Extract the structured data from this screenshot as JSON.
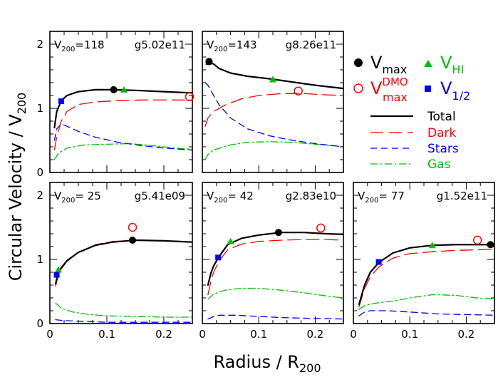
{
  "figure": {
    "ylabel": "Circular Velocity / V",
    "ylabel_sub": "200",
    "xlabel": "Radius / R",
    "xlabel_sub": "200"
  },
  "legend": {
    "vmax_label": "V",
    "vmax_sub": "max",
    "vmaxdmo_label": "V",
    "vmaxdmo_sup": "DMO",
    "vmaxdmo_sub": "max",
    "vhi_label": "V",
    "vhi_sub": "HI",
    "vhalf_label": "V",
    "vhalf_sub": "1/2",
    "lines": [
      {
        "label": "Total",
        "color": "#000000",
        "style": "solid"
      },
      {
        "label": "Dark",
        "color": "#ff0000",
        "style": "long-dash"
      },
      {
        "label": "Stars",
        "color": "#0000ff",
        "style": "dash"
      },
      {
        "label": "Gas",
        "color": "#00c000",
        "style": "dash-dot"
      }
    ],
    "colors": {
      "total": "#000000",
      "dark": "#ff0000",
      "stars": "#0000ff",
      "gas": "#00c000"
    }
  },
  "chart_data": [
    {
      "type": "line",
      "v200_label": "V",
      "v200_sub": "200",
      "v200_value": "=118",
      "galaxy": "g5.02e11",
      "xlim": [
        0,
        0.25
      ],
      "ylim": [
        0,
        2.2
      ],
      "xticks": [
        "0",
        "0.1",
        "0.2"
      ],
      "yticks": [
        "0",
        "1",
        "2"
      ],
      "series": [
        {
          "name": "Total",
          "x": [
            0.008,
            0.012,
            0.02,
            0.03,
            0.05,
            0.08,
            0.11,
            0.15,
            0.2,
            0.25
          ],
          "y": [
            0.7,
            0.95,
            1.12,
            1.2,
            1.26,
            1.29,
            1.29,
            1.28,
            1.26,
            1.24
          ]
        },
        {
          "name": "Dark",
          "x": [
            0.008,
            0.012,
            0.02,
            0.03,
            0.05,
            0.08,
            0.12,
            0.16,
            0.2,
            0.25
          ],
          "y": [
            0.35,
            0.55,
            0.8,
            0.95,
            1.06,
            1.1,
            1.12,
            1.13,
            1.13,
            1.13
          ]
        },
        {
          "name": "Stars",
          "x": [
            0.008,
            0.012,
            0.02,
            0.03,
            0.05,
            0.08,
            0.12,
            0.16,
            0.2,
            0.25
          ],
          "y": [
            0.5,
            0.68,
            0.76,
            0.72,
            0.64,
            0.55,
            0.47,
            0.42,
            0.38,
            0.35
          ]
        },
        {
          "name": "Gas",
          "x": [
            0.008,
            0.015,
            0.03,
            0.06,
            0.1,
            0.14,
            0.18,
            0.22,
            0.25
          ],
          "y": [
            0.2,
            0.3,
            0.38,
            0.43,
            0.44,
            0.45,
            0.42,
            0.38,
            0.36
          ]
        }
      ],
      "markers": {
        "vmax": [
          0.112,
          1.29
        ],
        "vmax_dmo": [
          0.245,
          1.18
        ],
        "vhi": [
          0.13,
          1.29
        ],
        "vhalf": [
          0.02,
          1.11
        ]
      }
    },
    {
      "type": "line",
      "v200_label": "V",
      "v200_sub": "200",
      "v200_value": "=143",
      "galaxy": "g8.26e11",
      "xlim": [
        0,
        0.25
      ],
      "ylim": [
        0,
        2.2
      ],
      "xticks": [
        "0",
        "0.1",
        "0.2"
      ],
      "yticks": [
        "0",
        "1",
        "2"
      ],
      "series": [
        {
          "name": "Total",
          "x": [
            0.008,
            0.012,
            0.02,
            0.03,
            0.05,
            0.08,
            0.12,
            0.16,
            0.2,
            0.25
          ],
          "y": [
            1.7,
            1.73,
            1.69,
            1.62,
            1.55,
            1.5,
            1.46,
            1.41,
            1.36,
            1.31
          ]
        },
        {
          "name": "Dark",
          "x": [
            0.005,
            0.01,
            0.02,
            0.04,
            0.07,
            0.1,
            0.14,
            0.18,
            0.22,
            0.25
          ],
          "y": [
            0.72,
            0.85,
            0.95,
            1.05,
            1.15,
            1.2,
            1.23,
            1.23,
            1.21,
            1.2
          ]
        },
        {
          "name": "Stars",
          "x": [
            0.005,
            0.01,
            0.02,
            0.03,
            0.05,
            0.08,
            0.12,
            0.16,
            0.2,
            0.25
          ],
          "y": [
            1.4,
            1.36,
            1.2,
            1.05,
            0.85,
            0.68,
            0.57,
            0.5,
            0.45,
            0.4
          ]
        },
        {
          "name": "Gas",
          "x": [
            0.005,
            0.01,
            0.02,
            0.05,
            0.08,
            0.12,
            0.16,
            0.2,
            0.25
          ],
          "y": [
            0.2,
            0.28,
            0.35,
            0.43,
            0.47,
            0.48,
            0.47,
            0.44,
            0.4
          ]
        }
      ],
      "markers": {
        "vmax": [
          0.012,
          1.73
        ],
        "vmax_dmo": [
          0.17,
          1.27
        ],
        "vhi": [
          0.125,
          1.45
        ],
        "vhalf": [
          0.011,
          1.72
        ]
      }
    },
    {
      "type": "line",
      "v200_label": "V",
      "v200_sub": "200",
      "v200_value": "=  25",
      "galaxy": "g5.41e09",
      "xlim": [
        0,
        0.25
      ],
      "ylim": [
        0,
        2.2
      ],
      "xticks": [
        "0",
        "0.1",
        "0.2"
      ],
      "yticks": [
        "0",
        "1",
        "2"
      ],
      "series": [
        {
          "name": "Total",
          "x": [
            0.01,
            0.015,
            0.02,
            0.03,
            0.05,
            0.08,
            0.11,
            0.15,
            0.2,
            0.25
          ],
          "y": [
            0.62,
            0.8,
            0.87,
            0.98,
            1.11,
            1.22,
            1.27,
            1.3,
            1.29,
            1.27
          ]
        },
        {
          "name": "Dark",
          "x": [
            0.01,
            0.015,
            0.02,
            0.03,
            0.05,
            0.08,
            0.11,
            0.15,
            0.2,
            0.25
          ],
          "y": [
            0.58,
            0.76,
            0.85,
            0.97,
            1.11,
            1.23,
            1.28,
            1.3,
            1.29,
            1.27
          ]
        },
        {
          "name": "Stars",
          "x": [
            0.01,
            0.02,
            0.04,
            0.07,
            0.1,
            0.15,
            0.2,
            0.25
          ],
          "y": [
            0.06,
            0.05,
            0.04,
            0.03,
            0.02,
            0.02,
            0.02,
            0.02
          ]
        },
        {
          "name": "Gas",
          "x": [
            0.01,
            0.02,
            0.04,
            0.07,
            0.1,
            0.15,
            0.2,
            0.25
          ],
          "y": [
            0.32,
            0.24,
            0.18,
            0.14,
            0.12,
            0.11,
            0.1,
            0.1
          ]
        }
      ],
      "markers": {
        "vmax": [
          0.145,
          1.3
        ],
        "vmax_dmo": [
          0.145,
          1.5
        ],
        "vhi": [
          0.015,
          0.84
        ],
        "vhalf": [
          0.012,
          0.76
        ]
      }
    },
    {
      "type": "line",
      "v200_label": "V",
      "v200_sub": "200",
      "v200_value": "=  42",
      "galaxy": "g2.83e10",
      "xlim": [
        0,
        0.25
      ],
      "ylim": [
        0,
        2.2
      ],
      "xticks": [
        "0",
        "0.1",
        "0.2"
      ],
      "yticks": [
        "0",
        "1",
        "2"
      ],
      "series": [
        {
          "name": "Total",
          "x": [
            0.01,
            0.015,
            0.02,
            0.03,
            0.045,
            0.07,
            0.1,
            0.14,
            0.18,
            0.22,
            0.25
          ],
          "y": [
            0.6,
            0.78,
            0.9,
            1.05,
            1.23,
            1.33,
            1.38,
            1.42,
            1.42,
            1.4,
            1.39
          ]
        },
        {
          "name": "Dark",
          "x": [
            0.01,
            0.015,
            0.02,
            0.03,
            0.045,
            0.07,
            0.1,
            0.14,
            0.18,
            0.22,
            0.25
          ],
          "y": [
            0.45,
            0.65,
            0.8,
            0.98,
            1.15,
            1.24,
            1.28,
            1.3,
            1.31,
            1.31,
            1.3
          ]
        },
        {
          "name": "Stars",
          "x": [
            0.01,
            0.02,
            0.03,
            0.06,
            0.1,
            0.15,
            0.2,
            0.25
          ],
          "y": [
            0.07,
            0.11,
            0.13,
            0.13,
            0.11,
            0.09,
            0.08,
            0.07
          ]
        },
        {
          "name": "Gas",
          "x": [
            0.01,
            0.02,
            0.04,
            0.07,
            0.1,
            0.14,
            0.18,
            0.22,
            0.25
          ],
          "y": [
            0.38,
            0.46,
            0.52,
            0.55,
            0.55,
            0.52,
            0.48,
            0.43,
            0.4
          ]
        }
      ],
      "markers": {
        "vmax": [
          0.135,
          1.42
        ],
        "vmax_dmo": [
          0.21,
          1.49
        ],
        "vhi": [
          0.05,
          1.28
        ],
        "vhalf": [
          0.028,
          1.03
        ]
      }
    },
    {
      "type": "line",
      "v200_label": "V",
      "v200_sub": "200",
      "v200_value": "=  77",
      "galaxy": "g1.52e11",
      "xlim": [
        0,
        0.25
      ],
      "ylim": [
        0,
        2.2
      ],
      "xticks": [
        "0",
        "0.1",
        "0.2"
      ],
      "yticks": [
        "0",
        "1",
        "2"
      ],
      "series": [
        {
          "name": "Total",
          "x": [
            0.01,
            0.02,
            0.03,
            0.045,
            0.07,
            0.1,
            0.14,
            0.18,
            0.22,
            0.25
          ],
          "y": [
            0.3,
            0.6,
            0.8,
            0.95,
            1.1,
            1.18,
            1.22,
            1.23,
            1.23,
            1.23
          ]
        },
        {
          "name": "Dark",
          "x": [
            0.01,
            0.02,
            0.03,
            0.045,
            0.07,
            0.1,
            0.14,
            0.18,
            0.22,
            0.25
          ],
          "y": [
            0.26,
            0.55,
            0.73,
            0.88,
            1.02,
            1.09,
            1.12,
            1.14,
            1.15,
            1.16
          ]
        },
        {
          "name": "Stars",
          "x": [
            0.01,
            0.02,
            0.03,
            0.06,
            0.1,
            0.15,
            0.2,
            0.25
          ],
          "y": [
            0.12,
            0.18,
            0.2,
            0.2,
            0.18,
            0.15,
            0.14,
            0.13
          ]
        },
        {
          "name": "Gas",
          "x": [
            0.01,
            0.02,
            0.04,
            0.07,
            0.1,
            0.14,
            0.18,
            0.22,
            0.25
          ],
          "y": [
            0.22,
            0.28,
            0.32,
            0.35,
            0.4,
            0.45,
            0.44,
            0.4,
            0.38
          ]
        }
      ],
      "markers": {
        "vmax": [
          0.243,
          1.23
        ],
        "vmax_dmo": [
          0.22,
          1.3
        ],
        "vhi": [
          0.14,
          1.22
        ],
        "vhalf": [
          0.045,
          0.96
        ]
      }
    }
  ]
}
